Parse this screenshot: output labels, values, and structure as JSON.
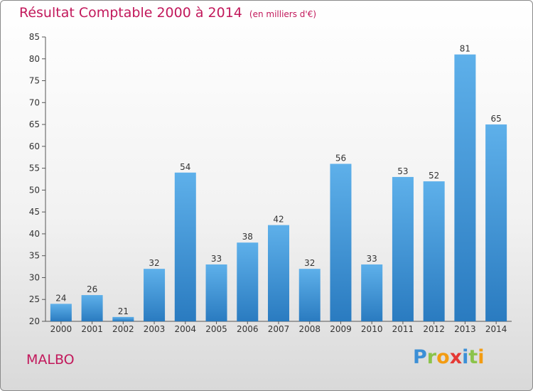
{
  "title": "Résultat Comptable 2000 à 2014",
  "subtitle": "(en milliers d'€)",
  "commune": "MALBO",
  "logo": {
    "letters": [
      "P",
      "r",
      "o",
      "x",
      "i",
      "t",
      "i"
    ],
    "colors": [
      "#3b8fd6",
      "#8bc34a",
      "#f39c12",
      "#e53935",
      "#3b8fd6",
      "#8bc34a",
      "#f39c12"
    ]
  },
  "colors": {
    "bar": "#3d8fd4",
    "bar_light": "#5eb0ea",
    "title": "#c2185b"
  },
  "chart_data": {
    "type": "bar",
    "categories": [
      "2000",
      "2001",
      "2002",
      "2003",
      "2004",
      "2005",
      "2006",
      "2007",
      "2008",
      "2009",
      "2010",
      "2011",
      "2012",
      "2013",
      "2014"
    ],
    "values": [
      24,
      26,
      21,
      32,
      54,
      33,
      38,
      42,
      32,
      56,
      33,
      53,
      52,
      81,
      65
    ],
    "ylim": [
      20,
      85
    ],
    "yticks": [
      20,
      25,
      30,
      35,
      40,
      45,
      50,
      55,
      60,
      65,
      70,
      75,
      80,
      85
    ],
    "grid": false,
    "legend": "none"
  }
}
